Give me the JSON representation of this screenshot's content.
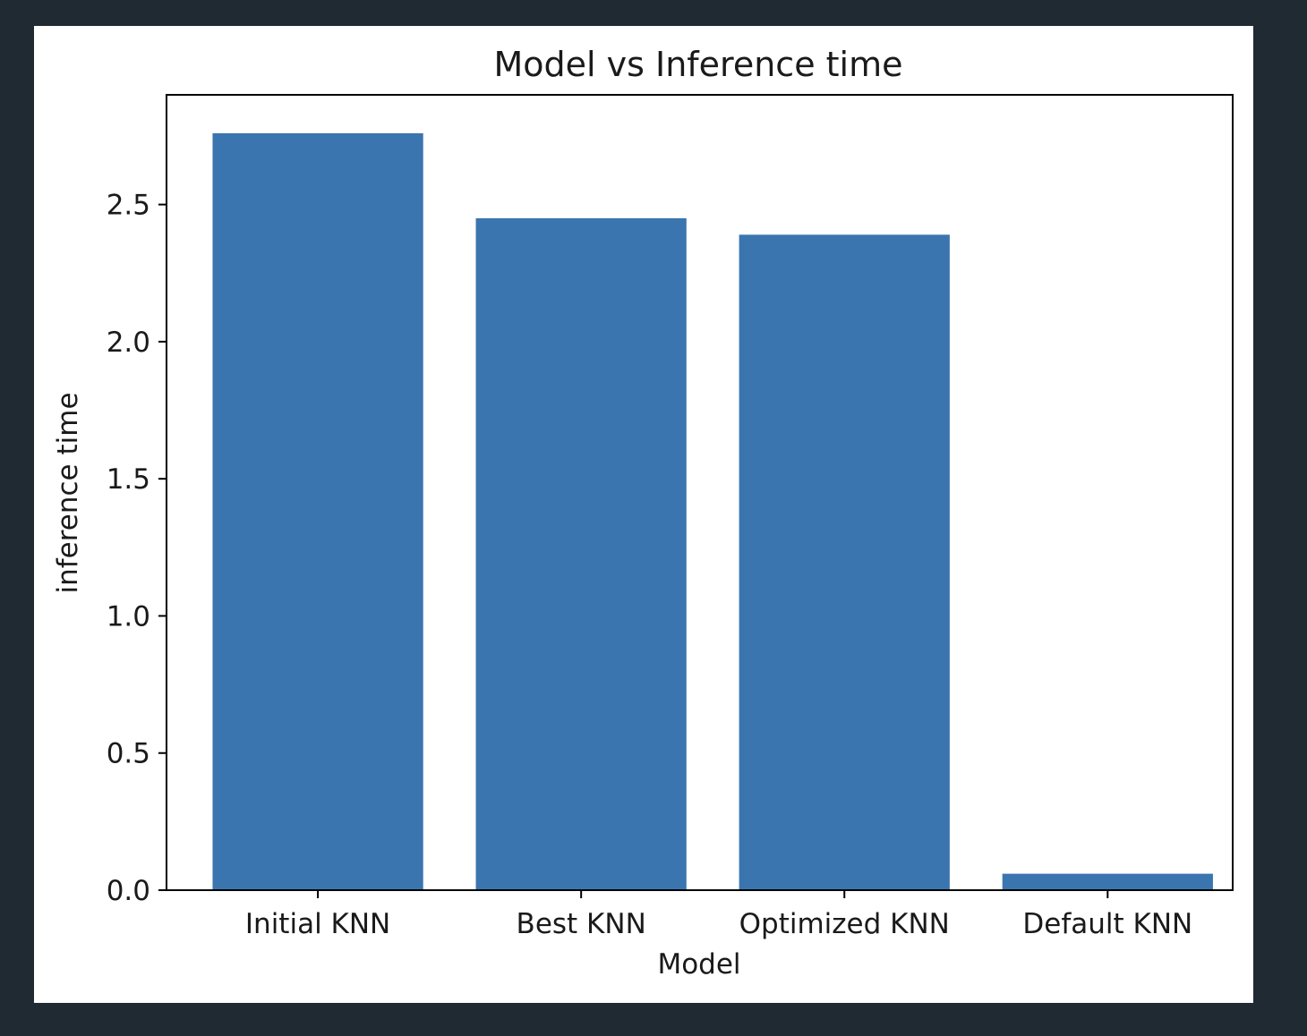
{
  "chart_data": {
    "type": "bar",
    "title": "Model vs Inference time",
    "xlabel": "Model",
    "ylabel": "inference time",
    "categories": [
      "Initial KNN",
      "Best KNN",
      "Optimized KNN",
      "Default KNN"
    ],
    "values": [
      2.76,
      2.45,
      2.39,
      0.06
    ],
    "ylim": [
      0,
      2.9
    ],
    "yticks": [
      0.0,
      0.5,
      1.0,
      1.5,
      2.0,
      2.5
    ],
    "ytick_labels": [
      "0.0",
      "0.5",
      "1.0",
      "1.5",
      "2.0",
      "2.5"
    ],
    "grid": false,
    "legend": "none",
    "bar_color": "#3b75af"
  }
}
